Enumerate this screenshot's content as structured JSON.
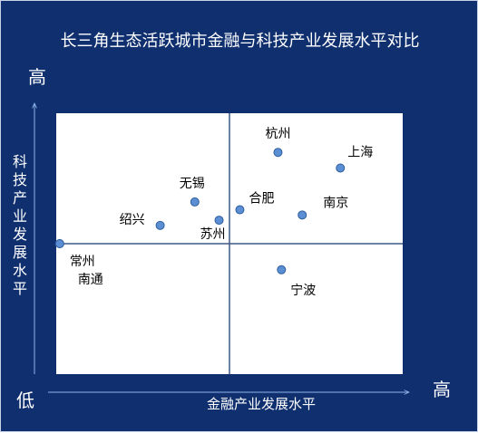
{
  "chart_data": {
    "type": "scatter",
    "title": "长三角生态活跃城市金融与科技产业发展水平对比",
    "xlabel": "金融产业发展水平",
    "ylabel": "科技产业发展水平",
    "axis_marks": {
      "high": "高",
      "low": "低"
    },
    "xlim": [
      0,
      100
    ],
    "ylim": [
      0,
      100
    ],
    "quadrant_center": [
      50,
      50
    ],
    "grid": false,
    "points": [
      {
        "label": "杭州",
        "x": 64,
        "y": 85
      },
      {
        "label": "上海",
        "x": 82,
        "y": 79
      },
      {
        "label": "无锡",
        "x": 40,
        "y": 66
      },
      {
        "label": "合肥",
        "x": 53,
        "y": 63
      },
      {
        "label": "南京",
        "x": 71,
        "y": 61
      },
      {
        "label": "苏州",
        "x": 47,
        "y": 59
      },
      {
        "label": "绍兴",
        "x": 30,
        "y": 57
      },
      {
        "label": "常州",
        "x": 1,
        "y": 50
      },
      {
        "label": "南通",
        "x": 1,
        "y": 50
      },
      {
        "label": "宁波",
        "x": 65,
        "y": 40
      }
    ],
    "colors": {
      "background": "#0f2f6f",
      "plot": "#ffffff",
      "quadrant_line": "#3d5a85",
      "point": "#5b8ed3",
      "point_edge": "#2f5f9e",
      "text": "#ffffff",
      "label": "#000000"
    }
  }
}
